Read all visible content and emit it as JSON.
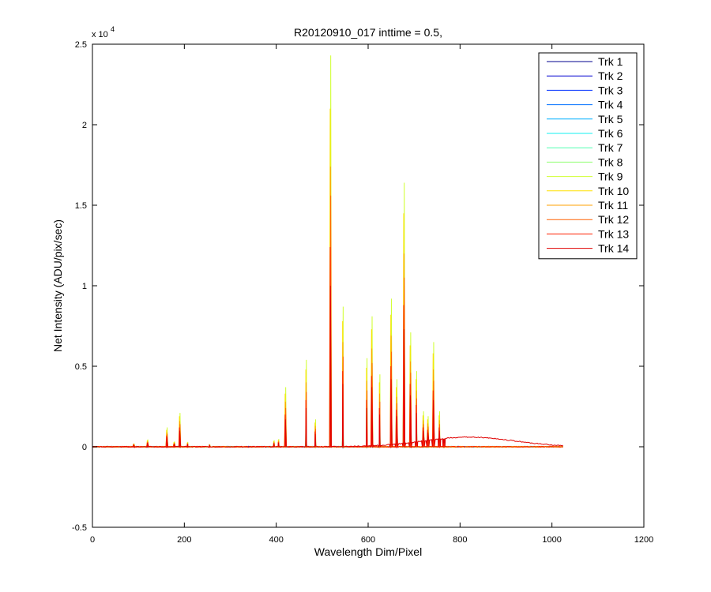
{
  "chart_data": {
    "type": "line",
    "title": "R20120910_017 inttime = 0.5,",
    "xlabel": "Wavelength Dim/Pixel",
    "ylabel": "Net Intensity (ADU/pix/sec)",
    "xlim": [
      0,
      1200
    ],
    "ylim": [
      -5000,
      25000
    ],
    "y_exponent_label": "x 10",
    "y_exponent_power": "4",
    "xticks": [
      0,
      200,
      400,
      600,
      800,
      1000,
      1200
    ],
    "xtick_labels": [
      "0",
      "200",
      "400",
      "600",
      "800",
      "1000",
      "1200"
    ],
    "yticks": [
      -5000,
      0,
      5000,
      10000,
      15000,
      20000,
      25000
    ],
    "ytick_labels": [
      "-0.5",
      "0",
      "0.5",
      "1",
      "1.5",
      "2",
      "2.5"
    ],
    "grid": false,
    "legend_position": "top-right",
    "x_domain": [
      0,
      1024
    ],
    "peaks": [
      {
        "x": 90,
        "h": [
          60,
          80,
          100,
          110,
          120,
          140,
          160,
          180,
          200,
          180,
          160,
          140,
          120,
          100
        ]
      },
      {
        "x": 120,
        "h": [
          100,
          140,
          180,
          210,
          240,
          280,
          320,
          380,
          450,
          400,
          340,
          300,
          260,
          220
        ]
      },
      {
        "x": 162,
        "h": [
          250,
          320,
          380,
          440,
          500,
          600,
          700,
          900,
          1200,
          1050,
          900,
          800,
          700,
          600
        ]
      },
      {
        "x": 178,
        "h": [
          60,
          80,
          100,
          120,
          140,
          170,
          200,
          260,
          330,
          290,
          250,
          220,
          190,
          160
        ]
      },
      {
        "x": 190,
        "h": [
          350,
          450,
          550,
          650,
          750,
          900,
          1100,
          1500,
          2100,
          1900,
          1600,
          1400,
          1200,
          1000
        ]
      },
      {
        "x": 207,
        "h": [
          60,
          80,
          100,
          120,
          140,
          160,
          180,
          220,
          300,
          260,
          230,
          200,
          170,
          150
        ]
      },
      {
        "x": 255,
        "h": [
          30,
          40,
          50,
          60,
          70,
          80,
          90,
          110,
          140,
          120,
          100,
          90,
          80,
          70
        ]
      },
      {
        "x": 395,
        "h": [
          80,
          100,
          120,
          150,
          180,
          210,
          250,
          320,
          400,
          350,
          300,
          260,
          220,
          190
        ]
      },
      {
        "x": 405,
        "h": [
          100,
          130,
          160,
          190,
          220,
          260,
          300,
          380,
          480,
          420,
          360,
          320,
          280,
          240
        ]
      },
      {
        "x": 420,
        "h": [
          600,
          800,
          1000,
          1200,
          1400,
          1700,
          2000,
          2800,
          3700,
          3300,
          2800,
          2400,
          2000,
          1700
        ]
      },
      {
        "x": 465,
        "h": [
          900,
          1200,
          1500,
          1800,
          2100,
          2500,
          3000,
          4200,
          5400,
          4800,
          4000,
          3400,
          2900,
          2400
        ]
      },
      {
        "x": 485,
        "h": [
          200,
          300,
          400,
          500,
          600,
          700,
          850,
          1300,
          1700,
          1500,
          1300,
          1100,
          950,
          800
        ]
      },
      {
        "x": 518,
        "h": [
          3000,
          4000,
          5500,
          7000,
          8500,
          10000,
          12000,
          17000,
          24300,
          21000,
          17400,
          15600,
          12400,
          10000
        ]
      },
      {
        "x": 545,
        "h": [
          1500,
          2000,
          2600,
          3200,
          3800,
          4500,
          5200,
          7000,
          8700,
          7800,
          6500,
          5600,
          4700,
          3900
        ]
      },
      {
        "x": 597,
        "h": [
          900,
          1200,
          1500,
          1800,
          2100,
          2500,
          3000,
          4200,
          5500,
          4900,
          4100,
          3500,
          2900,
          2400
        ]
      },
      {
        "x": 608,
        "h": [
          1400,
          1900,
          2400,
          2900,
          3400,
          4000,
          4700,
          6300,
          8100,
          7300,
          6100,
          5200,
          4400,
          3700
        ]
      },
      {
        "x": 625,
        "h": [
          700,
          950,
          1200,
          1450,
          1700,
          2000,
          2400,
          3500,
          4500,
          4000,
          3300,
          2800,
          2400,
          2000
        ]
      },
      {
        "x": 650,
        "h": [
          1600,
          2100,
          2700,
          3300,
          3900,
          4600,
          5400,
          7300,
          9200,
          8200,
          6900,
          5900,
          5000,
          4200
        ]
      },
      {
        "x": 662,
        "h": [
          700,
          950,
          1200,
          1450,
          1700,
          2000,
          2400,
          3300,
          4200,
          3700,
          3100,
          2700,
          2300,
          1900
        ]
      },
      {
        "x": 678,
        "h": [
          3000,
          4000,
          5000,
          6000,
          7000,
          8200,
          9700,
          13000,
          16400,
          14500,
          12000,
          10500,
          8800,
          7300
        ]
      },
      {
        "x": 692,
        "h": [
          1200,
          1600,
          2000,
          2500,
          3000,
          3500,
          4100,
          5600,
          7100,
          6300,
          5300,
          4600,
          3900,
          3200
        ]
      },
      {
        "x": 705,
        "h": [
          800,
          1100,
          1400,
          1700,
          2000,
          2300,
          2700,
          3700,
          4700,
          4200,
          3500,
          3000,
          2600,
          2100
        ]
      },
      {
        "x": 720,
        "h": [
          350,
          480,
          600,
          750,
          900,
          1050,
          1250,
          1700,
          2200,
          1950,
          1650,
          1400,
          1200,
          1000
        ]
      },
      {
        "x": 730,
        "h": [
          300,
          420,
          540,
          660,
          780,
          920,
          1100,
          1500,
          1900,
          1700,
          1450,
          1250,
          1050,
          880
        ]
      },
      {
        "x": 742,
        "h": [
          1000,
          1400,
          1800,
          2200,
          2600,
          3000,
          3500,
          4700,
          6500,
          5800,
          4800,
          4100,
          3500,
          2900
        ]
      },
      {
        "x": 755,
        "h": [
          300,
          420,
          540,
          660,
          780,
          920,
          1100,
          1600,
          2200,
          1950,
          1650,
          1400,
          1200,
          1000
        ]
      },
      {
        "x": 765,
        "h": [
          80,
          110,
          140,
          170,
          200,
          240,
          280,
          380,
          500,
          440,
          370,
          320,
          270,
          230
        ]
      }
    ],
    "continuum": {
      "series_index": 13,
      "center": 820,
      "amplitude": 600,
      "width": 140
    },
    "series": [
      {
        "name": "Trk 1",
        "color": "#00008f"
      },
      {
        "name": "Trk 2",
        "color": "#0000d0"
      },
      {
        "name": "Trk 3",
        "color": "#0030ff"
      },
      {
        "name": "Trk 4",
        "color": "#0070ff"
      },
      {
        "name": "Trk 5",
        "color": "#00b0ff"
      },
      {
        "name": "Trk 6",
        "color": "#10f0f0"
      },
      {
        "name": "Trk 7",
        "color": "#50ffb0"
      },
      {
        "name": "Trk 8",
        "color": "#90ff70"
      },
      {
        "name": "Trk 9",
        "color": "#d0ff30"
      },
      {
        "name": "Trk 10",
        "color": "#ffe000"
      },
      {
        "name": "Trk 11",
        "color": "#ffa000"
      },
      {
        "name": "Trk 12",
        "color": "#ff6000"
      },
      {
        "name": "Trk 13",
        "color": "#ff2000"
      },
      {
        "name": "Trk 14",
        "color": "#e00000"
      }
    ]
  }
}
